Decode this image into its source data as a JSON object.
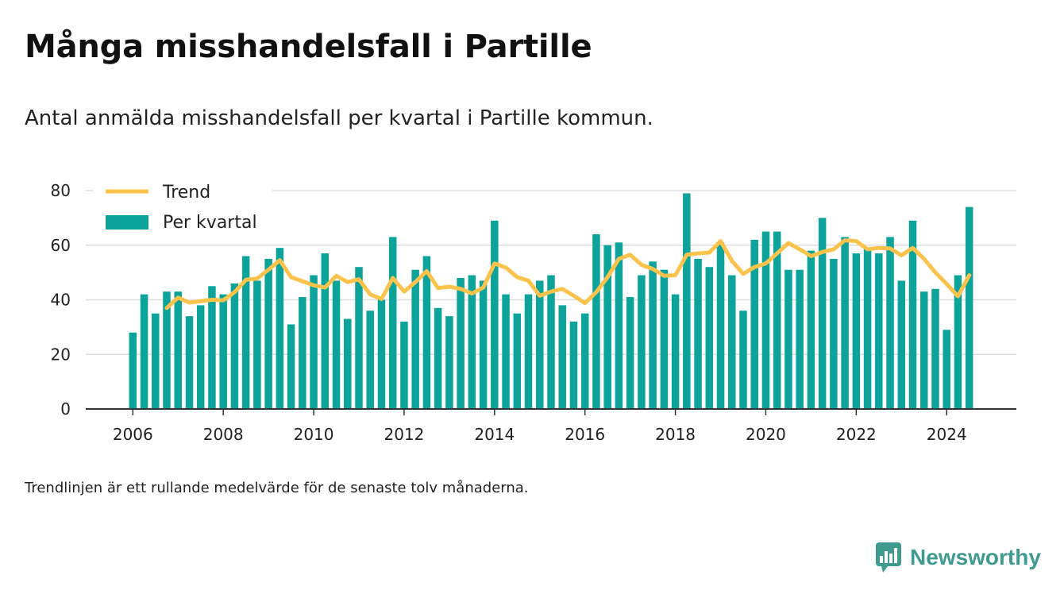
{
  "title": "Många misshandelsfall i Partille",
  "subtitle": "Antal anmälda misshandelsfall per kvartal i Partille kommun.",
  "footnote": "Trendlinjen är ett rullande medelvärde för de senaste tolv månaderna.",
  "brand": {
    "name": "Newsworthy",
    "icon": "newsworthy-logo-icon"
  },
  "colors": {
    "bars": "#0ba39a",
    "trend": "#fbc34b",
    "grid": "#dddddd",
    "axis": "#333333"
  },
  "chart_data": {
    "type": "bar",
    "title": "Många misshandelsfall i Partille",
    "xlabel": "",
    "ylabel": "",
    "ylim": [
      0,
      80
    ],
    "yticks": [
      0,
      20,
      40,
      60,
      80
    ],
    "xticks": [
      "2006",
      "2008",
      "2010",
      "2012",
      "2014",
      "2016",
      "2018",
      "2020",
      "2022",
      "2024"
    ],
    "grid": true,
    "legend": {
      "placement": "top-left",
      "entries": [
        "Trend",
        "Per kvartal"
      ]
    },
    "categories": [
      "2006-Q1",
      "2006-Q2",
      "2006-Q3",
      "2006-Q4",
      "2007-Q1",
      "2007-Q2",
      "2007-Q3",
      "2007-Q4",
      "2008-Q1",
      "2008-Q2",
      "2008-Q3",
      "2008-Q4",
      "2009-Q1",
      "2009-Q2",
      "2009-Q3",
      "2009-Q4",
      "2010-Q1",
      "2010-Q2",
      "2010-Q3",
      "2010-Q4",
      "2011-Q1",
      "2011-Q2",
      "2011-Q3",
      "2011-Q4",
      "2012-Q1",
      "2012-Q2",
      "2012-Q3",
      "2012-Q4",
      "2013-Q1",
      "2013-Q2",
      "2013-Q3",
      "2013-Q4",
      "2014-Q1",
      "2014-Q2",
      "2014-Q3",
      "2014-Q4",
      "2015-Q1",
      "2015-Q2",
      "2015-Q3",
      "2015-Q4",
      "2016-Q1",
      "2016-Q2",
      "2016-Q3",
      "2016-Q4",
      "2017-Q1",
      "2017-Q2",
      "2017-Q3",
      "2017-Q4",
      "2018-Q1",
      "2018-Q2",
      "2018-Q3",
      "2018-Q4",
      "2019-Q1",
      "2019-Q2",
      "2019-Q3",
      "2019-Q4",
      "2020-Q1",
      "2020-Q2",
      "2020-Q3",
      "2020-Q4",
      "2021-Q1",
      "2021-Q2",
      "2021-Q3",
      "2021-Q4",
      "2022-Q1",
      "2022-Q2",
      "2022-Q3",
      "2022-Q4",
      "2023-Q1",
      "2023-Q2",
      "2023-Q3",
      "2023-Q4",
      "2024-Q1",
      "2024-Q2",
      "2024-Q3"
    ],
    "series": [
      {
        "name": "Per kvartal",
        "type": "bar",
        "values": [
          28,
          42,
          35,
          43,
          43,
          34,
          38,
          45,
          42,
          46,
          56,
          47,
          55,
          59,
          31,
          41,
          49,
          57,
          47,
          33,
          52,
          36,
          40,
          63,
          32,
          51,
          56,
          37,
          34,
          48,
          49,
          47,
          69,
          42,
          35,
          42,
          47,
          49,
          38,
          32,
          35,
          64,
          60,
          61,
          41,
          49,
          54,
          51,
          42,
          79,
          55,
          52,
          61,
          49,
          36,
          62,
          65,
          65,
          51,
          51,
          58,
          70,
          55,
          63,
          57,
          59,
          57,
          63,
          47,
          69,
          43,
          44,
          29,
          49,
          74
        ]
      },
      {
        "name": "Trend",
        "type": "line",
        "values": [
          null,
          null,
          null,
          37.0,
          40.8,
          39.0,
          39.5,
          40.0,
          39.8,
          42.8,
          47.3,
          47.8,
          51.0,
          54.5,
          48.3,
          46.8,
          45.3,
          44.5,
          48.8,
          46.5,
          47.5,
          42.0,
          40.3,
          48.0,
          43.0,
          46.5,
          50.5,
          44.3,
          44.8,
          44.0,
          42.3,
          44.5,
          53.3,
          51.8,
          48.3,
          47.0,
          41.5,
          43.0,
          44.0,
          41.5,
          38.8,
          42.8,
          48.3,
          55.0,
          56.5,
          52.8,
          51.3,
          48.8,
          49.0,
          56.5,
          57.0,
          57.3,
          61.5,
          54.3,
          49.5,
          52.0,
          53.3,
          57.0,
          60.8,
          58.5,
          56.0,
          57.5,
          58.5,
          61.8,
          61.5,
          58.5,
          59.0,
          58.8,
          56.3,
          59.0,
          55.0,
          50.0,
          45.8,
          41.3,
          49.0
        ]
      }
    ]
  }
}
